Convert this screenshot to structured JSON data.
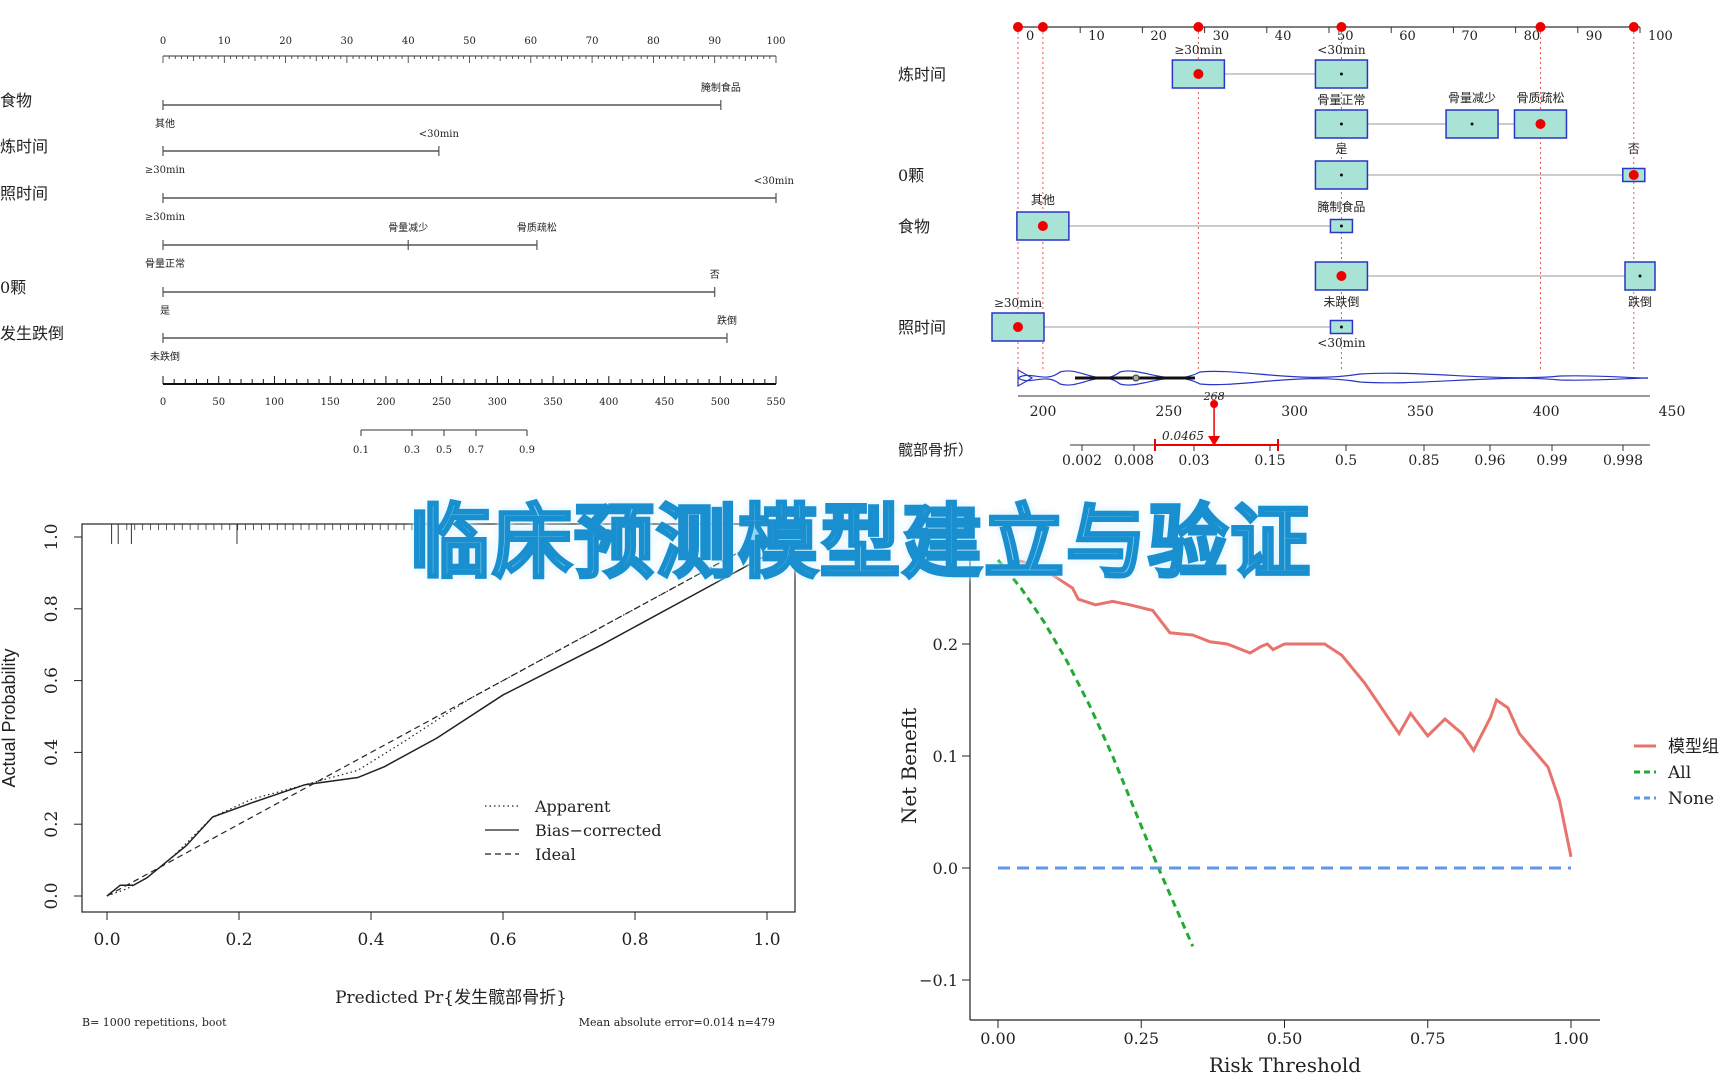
{
  "banner": "临床预测模型建立与验证",
  "chart_data": [
    {
      "type": "nomogram",
      "id": "static-nomogram",
      "points_axis": {
        "min": 0,
        "max": 100,
        "ticks": [
          0,
          10,
          20,
          30,
          40,
          50,
          60,
          70,
          80,
          90,
          100
        ]
      },
      "variables": [
        {
          "label": "食物",
          "levels": [
            {
              "name": "其他",
              "points": 0
            },
            {
              "name": "腌制食品",
              "points": 91
            }
          ]
        },
        {
          "label": "炼时间",
          "levels": [
            {
              "name": "≥30min",
              "points": 0
            },
            {
              "name": "<30min",
              "points": 45
            }
          ]
        },
        {
          "label": "照时间",
          "levels": [
            {
              "name": "≥30min",
              "points": 0
            },
            {
              "name": "<30min",
              "points": 100
            }
          ]
        },
        {
          "label": "",
          "levels": [
            {
              "name": "骨量正常",
              "points": 0
            },
            {
              "name": "骨量减少",
              "points": 40
            },
            {
              "name": "骨质疏松",
              "points": 61
            }
          ]
        },
        {
          "label": "0颗",
          "levels": [
            {
              "name": "是",
              "points": 0
            },
            {
              "name": "否",
              "points": 90
            }
          ]
        },
        {
          "label": "发生跌倒",
          "levels": [
            {
              "name": "未跌倒",
              "points": 0
            },
            {
              "name": "跌倒",
              "points": 92
            }
          ]
        }
      ],
      "total_points_axis": {
        "min": 0,
        "max": 550,
        "ticks": [
          0,
          50,
          100,
          150,
          200,
          250,
          300,
          350,
          400,
          450,
          500,
          550
        ]
      },
      "risk_axis_ticks": [
        "0.1",
        "0.3",
        "0.5",
        "0.7",
        "0.9"
      ]
    },
    {
      "type": "dynamic-nomogram",
      "id": "regplot",
      "points_axis": {
        "min": 0,
        "max": 100,
        "ticks": [
          "0",
          "10",
          "20",
          "30",
          "40",
          "50",
          "60",
          "70",
          "80",
          "90",
          "100"
        ]
      },
      "rows": [
        {
          "label": "炼时间",
          "boxes": [
            {
              "name": "≥30min",
              "at": 29,
              "selected": true
            },
            {
              "name": "<30min",
              "at": 52,
              "selected": false
            }
          ]
        },
        {
          "label": "",
          "boxes": [
            {
              "name": "骨量正常",
              "at": 52,
              "selected": false
            },
            {
              "name": "骨量减少",
              "at": 73,
              "selected": false
            },
            {
              "name": "骨质疏松",
              "at": 84,
              "selected": true
            }
          ]
        },
        {
          "label": "0颗",
          "boxes": [
            {
              "name": "是",
              "at": 52,
              "selected": false
            },
            {
              "name": "否",
              "at": 99,
              "selected": true
            }
          ]
        },
        {
          "label": "食物",
          "boxes": [
            {
              "name": "其他",
              "at": 4,
              "selected": true
            },
            {
              "name": "腌制食品",
              "at": 52,
              "selected": false
            }
          ]
        },
        {
          "label": "",
          "boxes": [
            {
              "name": "未跌倒",
              "at": 52,
              "selected": true
            },
            {
              "name": "跌倒",
              "at": 100,
              "selected": false
            }
          ]
        },
        {
          "label": "照时间",
          "boxes": [
            {
              "name": "≥30min",
              "at": 0,
              "selected": true
            },
            {
              "name": "<30min",
              "at": 52,
              "selected": false
            }
          ]
        }
      ],
      "selected_points": [
        0,
        4,
        29,
        52,
        84,
        99
      ],
      "total_axis_ticks": [
        "200",
        "250",
        "300",
        "350",
        "400",
        "450"
      ],
      "total_score": "268",
      "risk_label": "髋部骨折）",
      "risk_ticks": [
        "0.002",
        "0.008",
        "0.03",
        "0.15",
        "0.5",
        "0.85",
        "0.96",
        "0.99",
        "0.998"
      ],
      "predicted_risk": "0.0465"
    },
    {
      "type": "line",
      "id": "calibration",
      "xlabel": "Predicted Pr{发生髋部骨折}",
      "ylabel": "Actual Probability",
      "xlim": [
        0,
        1
      ],
      "ylim": [
        0,
        1
      ],
      "x_ticks": [
        "0.0",
        "0.2",
        "0.4",
        "0.6",
        "0.8",
        "1.0"
      ],
      "y_ticks": [
        "0.0",
        "0.2",
        "0.4",
        "0.6",
        "0.8",
        "1.0"
      ],
      "series": [
        {
          "name": "Apparent",
          "style": "dotted",
          "x": [
            0.0,
            0.03,
            0.06,
            0.1,
            0.16,
            0.22,
            0.3,
            0.38,
            0.45,
            0.55,
            0.7,
            0.85,
            1.0
          ],
          "y": [
            0.0,
            0.02,
            0.05,
            0.11,
            0.22,
            0.27,
            0.31,
            0.35,
            0.43,
            0.55,
            0.7,
            0.85,
            1.0
          ]
        },
        {
          "name": "Bias−corrected",
          "style": "solid",
          "x": [
            0.0,
            0.02,
            0.04,
            0.06,
            0.08,
            0.12,
            0.16,
            0.22,
            0.3,
            0.38,
            0.42,
            0.5,
            0.6,
            0.75,
            0.9,
            1.0
          ],
          "y": [
            0.0,
            0.03,
            0.03,
            0.05,
            0.08,
            0.14,
            0.22,
            0.26,
            0.31,
            0.33,
            0.36,
            0.44,
            0.56,
            0.7,
            0.85,
            0.95
          ]
        },
        {
          "name": "Ideal",
          "style": "dashed",
          "x": [
            0,
            1
          ],
          "y": [
            0,
            1
          ]
        }
      ],
      "footer_left": "B= 1000 repetitions, boot",
      "footer_right": "Mean absolute error=0.014 n=479"
    },
    {
      "type": "line",
      "id": "dca",
      "xlabel": "Risk Threshold",
      "ylabel": "Net Benefit",
      "xlim": [
        0,
        1
      ],
      "ylim": [
        -0.12,
        0.27
      ],
      "x_ticks": [
        "0.00",
        "0.25",
        "0.50",
        "0.75",
        "1.00"
      ],
      "y_ticks": [
        "−0.1",
        "0.0",
        "0.1",
        "0.2"
      ],
      "series": [
        {
          "name": "模型组",
          "color": "#e8736c",
          "style": "solid",
          "x": [
            0.03,
            0.07,
            0.13,
            0.14,
            0.17,
            0.2,
            0.23,
            0.27,
            0.3,
            0.34,
            0.37,
            0.4,
            0.44,
            0.46,
            0.47,
            0.48,
            0.5,
            0.53,
            0.57,
            0.6,
            0.64,
            0.68,
            0.7,
            0.72,
            0.75,
            0.78,
            0.81,
            0.83,
            0.86,
            0.87,
            0.89,
            0.91,
            0.96,
            0.98,
            1.0
          ],
          "y": [
            0.275,
            0.27,
            0.25,
            0.24,
            0.235,
            0.238,
            0.235,
            0.23,
            0.21,
            0.208,
            0.202,
            0.2,
            0.192,
            0.198,
            0.2,
            0.195,
            0.2,
            0.2,
            0.2,
            0.19,
            0.165,
            0.135,
            0.12,
            0.138,
            0.118,
            0.133,
            0.12,
            0.105,
            0.135,
            0.15,
            0.143,
            0.12,
            0.09,
            0.06,
            0.01
          ]
        },
        {
          "name": "All",
          "color": "#22aa33",
          "style": "dashed",
          "x": [
            0.0,
            0.04,
            0.08,
            0.12,
            0.16,
            0.2,
            0.24,
            0.28,
            0.34
          ],
          "y": [
            0.275,
            0.25,
            0.22,
            0.185,
            0.145,
            0.1,
            0.05,
            0.0,
            -0.07
          ]
        },
        {
          "name": "None",
          "color": "#5f97e8",
          "style": "dashed",
          "x": [
            0,
            1
          ],
          "y": [
            0,
            0
          ]
        }
      ]
    }
  ]
}
